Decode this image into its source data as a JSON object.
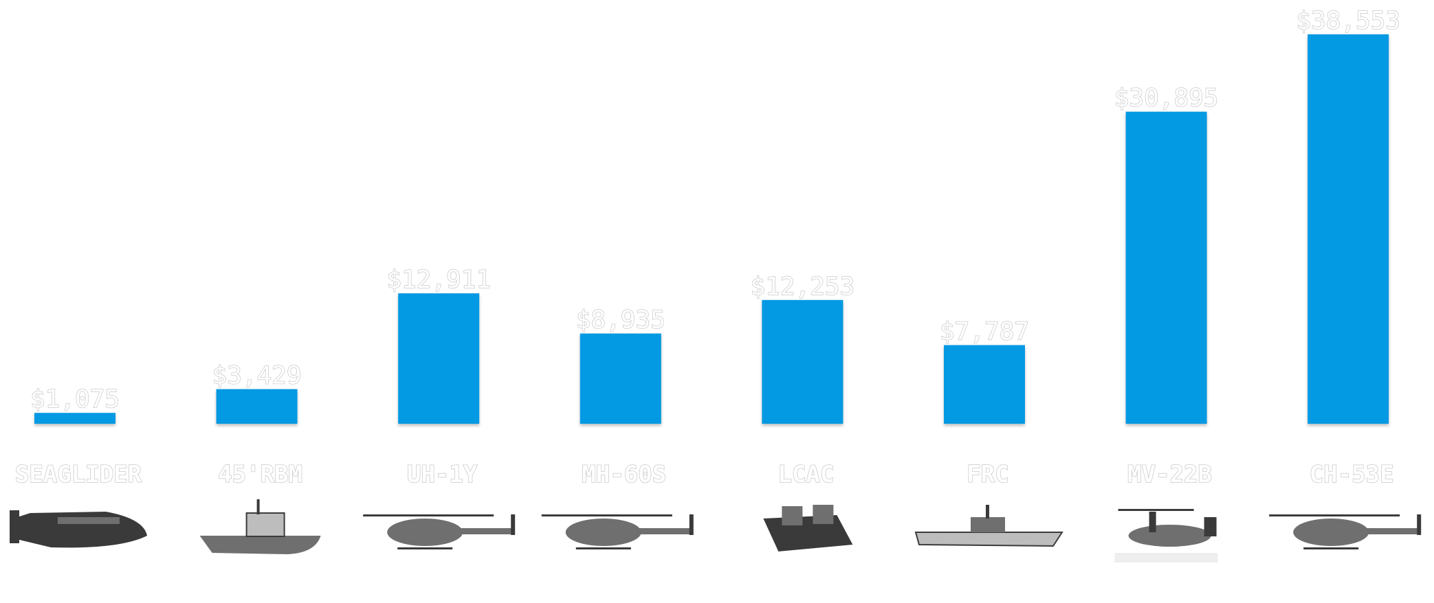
{
  "colors": {
    "bar": "#0499e3",
    "vehicle_body": "#6f6f6f",
    "vehicle_dark": "#3a3a3a",
    "vehicle_light": "#bdbdbd"
  },
  "chart_data": {
    "type": "bar",
    "categories": [
      "SEAGLIDER",
      "45'RBM",
      "UH-1Y",
      "MH-60S",
      "LCAC",
      "FRC",
      "MV-22B",
      "CH-53E"
    ],
    "values": [
      1075,
      3429,
      12911,
      8935,
      12253,
      7787,
      30895,
      38553
    ],
    "value_labels": [
      "$1,075",
      "$3,429",
      "$12,911",
      "$8,935",
      "$12,253",
      "$7,787",
      "$30,895",
      "$38,553"
    ],
    "icons": [
      "seaglider-icon",
      "rescue-boat-icon",
      "helicopter-icon",
      "helicopter-icon",
      "hovercraft-icon",
      "cutter-ship-icon",
      "tiltrotor-icon",
      "helicopter-icon"
    ],
    "ylim": [
      0,
      38553
    ],
    "grid": false,
    "legend": "none"
  }
}
